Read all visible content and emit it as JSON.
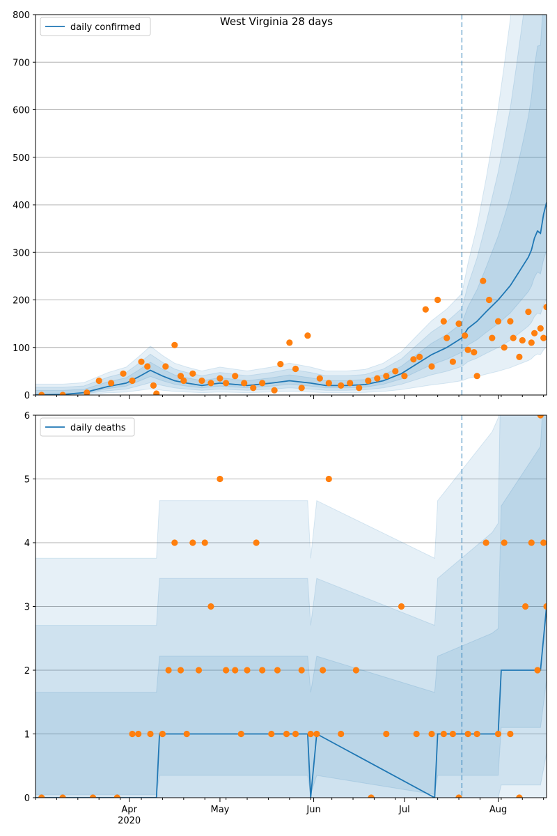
{
  "title": "West Virginia 28 days",
  "colors": {
    "line": "#1f77b4",
    "points": "#ff7f0e",
    "band": "#1f77b4",
    "grid": "#b0b0b0",
    "vline": "#1f77b4"
  },
  "xaxis": {
    "start": "2020-03-01",
    "end": "2020-08-17",
    "cutoff": "2020-07-20",
    "major_ticks": [
      {
        "date": "2020-04-01",
        "label": "Apr"
      },
      {
        "date": "2020-05-01",
        "label": "May"
      },
      {
        "date": "2020-06-01",
        "label": "Jun"
      },
      {
        "date": "2020-07-01",
        "label": "Jul"
      },
      {
        "date": "2020-08-01",
        "label": "Aug"
      }
    ],
    "year_label": "2020"
  },
  "chart_data": [
    {
      "type": "line",
      "legend": "daily confirmed",
      "legend_position": "top-left",
      "ylim": [
        0,
        800
      ],
      "yticks": [
        0,
        100,
        200,
        300,
        400,
        500,
        600,
        700,
        800
      ],
      "grid": true,
      "series_line": {
        "name": "daily confirmed",
        "x": [
          "2020-03-01",
          "2020-03-10",
          "2020-03-17",
          "2020-03-25",
          "2020-03-31",
          "2020-04-04",
          "2020-04-08",
          "2020-04-12",
          "2020-04-16",
          "2020-04-20",
          "2020-04-25",
          "2020-05-01",
          "2020-05-10",
          "2020-05-18",
          "2020-05-24",
          "2020-05-31",
          "2020-06-05",
          "2020-06-12",
          "2020-06-18",
          "2020-06-24",
          "2020-06-30",
          "2020-07-05",
          "2020-07-10",
          "2020-07-15",
          "2020-07-20",
          "2020-07-22",
          "2020-07-25",
          "2020-07-28",
          "2020-08-01",
          "2020-08-03",
          "2020-08-05",
          "2020-08-07",
          "2020-08-09",
          "2020-08-11",
          "2020-08-12",
          "2020-08-13",
          "2020-08-14",
          "2020-08-15",
          "2020-08-16",
          "2020-08-17"
        ],
        "y": [
          0,
          1,
          5,
          18,
          25,
          38,
          52,
          40,
          30,
          25,
          20,
          25,
          20,
          25,
          30,
          25,
          20,
          20,
          22,
          30,
          45,
          65,
          85,
          100,
          120,
          140,
          155,
          175,
          200,
          215,
          230,
          250,
          270,
          290,
          305,
          330,
          345,
          340,
          380,
          405
        ]
      },
      "series_points": {
        "name": "",
        "x": [
          "2020-03-03",
          "2020-03-10",
          "2020-03-18",
          "2020-03-22",
          "2020-03-26",
          "2020-03-30",
          "2020-04-02",
          "2020-04-05",
          "2020-04-07",
          "2020-04-09",
          "2020-04-10",
          "2020-04-13",
          "2020-04-16",
          "2020-04-18",
          "2020-04-19",
          "2020-04-22",
          "2020-04-25",
          "2020-04-28",
          "2020-05-01",
          "2020-05-03",
          "2020-05-06",
          "2020-05-09",
          "2020-05-12",
          "2020-05-15",
          "2020-05-19",
          "2020-05-21",
          "2020-05-24",
          "2020-05-26",
          "2020-05-28",
          "2020-05-30",
          "2020-06-03",
          "2020-06-06",
          "2020-06-10",
          "2020-06-13",
          "2020-06-16",
          "2020-06-19",
          "2020-06-22",
          "2020-06-25",
          "2020-06-28",
          "2020-07-01",
          "2020-07-04",
          "2020-07-06",
          "2020-07-08",
          "2020-07-10",
          "2020-07-12",
          "2020-07-14",
          "2020-07-15",
          "2020-07-17",
          "2020-07-19",
          "2020-07-21",
          "2020-07-22",
          "2020-07-24",
          "2020-07-25",
          "2020-07-27",
          "2020-07-29",
          "2020-07-30",
          "2020-08-01",
          "2020-08-03",
          "2020-08-05",
          "2020-08-06",
          "2020-08-08",
          "2020-08-09",
          "2020-08-11",
          "2020-08-12",
          "2020-08-13",
          "2020-08-15",
          "2020-08-16",
          "2020-08-17"
        ],
        "y": [
          0,
          0,
          5,
          30,
          25,
          45,
          30,
          70,
          60,
          20,
          3,
          60,
          105,
          40,
          30,
          45,
          30,
          25,
          35,
          25,
          40,
          25,
          15,
          25,
          10,
          65,
          110,
          55,
          15,
          125,
          35,
          25,
          20,
          25,
          15,
          30,
          35,
          40,
          50,
          40,
          75,
          80,
          180,
          60,
          200,
          155,
          120,
          70,
          150,
          125,
          95,
          90,
          40,
          240,
          200,
          120,
          155,
          100,
          155,
          120,
          80,
          115,
          175,
          110,
          130,
          140,
          120,
          185
        ]
      },
      "band_levels": 3
    },
    {
      "type": "line",
      "legend": "daily deaths",
      "legend_position": "top-left",
      "ylim": [
        0,
        6
      ],
      "yticks": [
        0,
        1,
        2,
        3,
        4,
        5,
        6
      ],
      "grid": true,
      "series_line": {
        "name": "daily deaths",
        "x": [
          "2020-03-01",
          "2020-04-10",
          "2020-04-11",
          "2020-05-29",
          "2020-05-30",
          "2020-05-31",
          "2020-06-02",
          "2020-07-11",
          "2020-07-12",
          "2020-07-30",
          "2020-08-01",
          "2020-08-02",
          "2020-08-15",
          "2020-08-17"
        ],
        "y": [
          0,
          0,
          1,
          1,
          1,
          0,
          1,
          0,
          1,
          1,
          1,
          2,
          2,
          3
        ]
      },
      "series_points": {
        "name": "",
        "x": [
          "2020-03-03",
          "2020-03-10",
          "2020-03-20",
          "2020-03-28",
          "2020-04-02",
          "2020-04-04",
          "2020-04-08",
          "2020-04-12",
          "2020-04-14",
          "2020-04-16",
          "2020-04-18",
          "2020-04-20",
          "2020-04-22",
          "2020-04-24",
          "2020-04-26",
          "2020-04-28",
          "2020-05-01",
          "2020-05-03",
          "2020-05-06",
          "2020-05-08",
          "2020-05-10",
          "2020-05-13",
          "2020-05-15",
          "2020-05-18",
          "2020-05-20",
          "2020-05-23",
          "2020-05-26",
          "2020-05-28",
          "2020-05-31",
          "2020-06-02",
          "2020-06-04",
          "2020-06-06",
          "2020-06-10",
          "2020-06-15",
          "2020-06-20",
          "2020-06-25",
          "2020-06-30",
          "2020-07-05",
          "2020-07-10",
          "2020-07-14",
          "2020-07-17",
          "2020-07-19",
          "2020-07-22",
          "2020-07-25",
          "2020-07-28",
          "2020-08-01",
          "2020-08-03",
          "2020-08-05",
          "2020-08-08",
          "2020-08-10",
          "2020-08-12",
          "2020-08-14",
          "2020-08-15",
          "2020-08-16",
          "2020-08-17"
        ],
        "y": [
          0,
          0,
          0,
          0,
          1,
          1,
          1,
          1,
          2,
          4,
          2,
          1,
          4,
          2,
          4,
          3,
          5,
          2,
          2,
          1,
          2,
          4,
          2,
          1,
          2,
          1,
          1,
          2,
          1,
          1,
          2,
          5,
          1,
          2,
          0,
          1,
          3,
          1,
          1,
          1,
          1,
          0,
          1,
          1,
          4,
          1,
          4,
          1,
          0,
          3,
          4,
          2,
          6,
          4,
          3
        ]
      },
      "band_levels": 3
    }
  ]
}
